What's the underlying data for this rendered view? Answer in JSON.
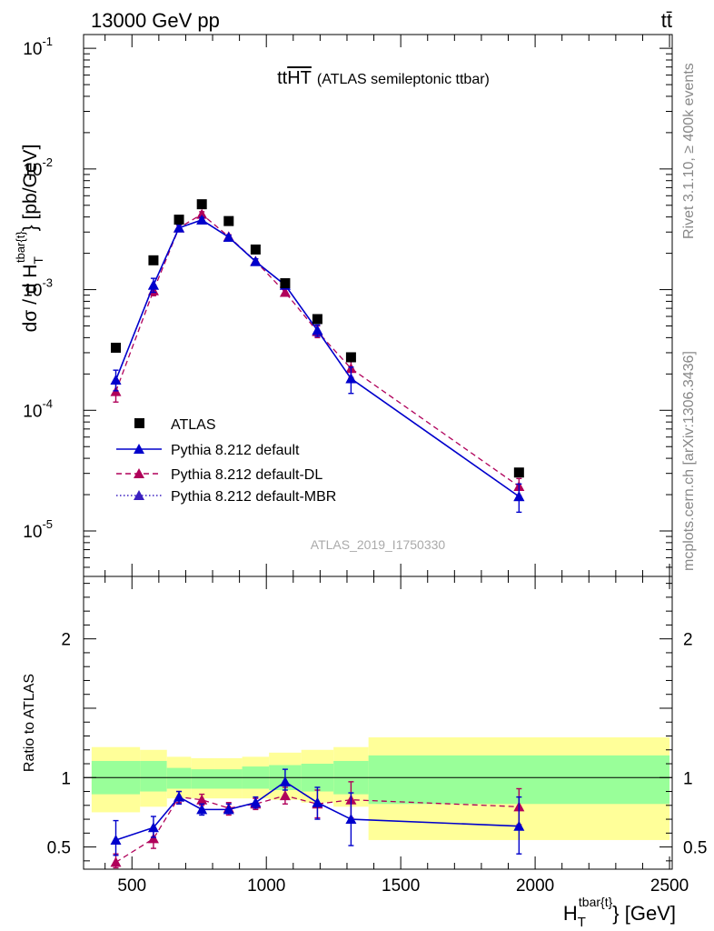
{
  "header": {
    "left": "13000 GeV pp",
    "right": "tt̄"
  },
  "side": {
    "rivet": "Rivet 3.1.10, ≥ 400k events",
    "mcplots": "mcplots.cern.ch [arXiv:1306.3436]"
  },
  "watermark": "ATLAS_2019_I1750330",
  "chart_data": [
    {
      "type": "line",
      "title": "ttHT (ATLAS semileptonic ttbar)",
      "title_main": "tt",
      "title_overline": "HT",
      "title_rest": "(ATLAS semileptonic ttbar)",
      "ylabel": "dσ / d H_T^{tbar{t}} [pb/GeV]",
      "ylabel_main": "dσ / d H",
      "ylabel_sup": "tbar{t}",
      "ylabel_sub": "T",
      "ylabel_end": "} [pb/GeV]",
      "yscale": "log",
      "xlim": [
        320,
        2510
      ],
      "ylim": [
        4.2e-06,
        0.13
      ],
      "yticks": [
        {
          "v": 1e-05,
          "base": "10",
          "exp": "-5"
        },
        {
          "v": 0.0001,
          "base": "10",
          "exp": "-4"
        },
        {
          "v": 0.001,
          "base": "10",
          "exp": "-3"
        },
        {
          "v": 0.01,
          "base": "10",
          "exp": "-2"
        },
        {
          "v": 0.1,
          "base": "10",
          "exp": "-1"
        }
      ],
      "legend_position": "bottom-left",
      "x": [
        440,
        580,
        675,
        760,
        860,
        960,
        1070,
        1190,
        1315,
        1940
      ],
      "series": [
        {
          "name": "ATLAS",
          "style": "data",
          "color": "#000000",
          "values": [
            0.00033,
            0.00175,
            0.0038,
            0.0051,
            0.0037,
            0.00215,
            0.00113,
            0.00057,
            0.000275,
            3.05e-05
          ]
        },
        {
          "name": "Pythia 8.212 default",
          "style": "solid",
          "color": "#0000cc",
          "values": [
            0.000178,
            0.00109,
            0.00325,
            0.00378,
            0.00272,
            0.00171,
            0.00109,
            0.00046,
            0.000183,
            1.93e-05
          ],
          "err_lo": [
            0.000145,
            0.00095,
            0.00305,
            0.0036,
            0.00262,
            0.00163,
            0.00102,
            0.00041,
            0.000138,
            1.43e-05
          ],
          "err_hi": [
            0.000215,
            0.00124,
            0.00345,
            0.00396,
            0.00282,
            0.0018,
            0.00117,
            0.00051,
            0.000228,
            2.45e-05
          ]
        },
        {
          "name": "Pythia 8.212 default-DL",
          "style": "dashed",
          "color": "#b0005a",
          "values": [
            0.000143,
            0.00098,
            0.00325,
            0.00422,
            0.00275,
            0.00172,
            0.00095,
            0.00045,
            0.000222,
            2.34e-05
          ],
          "err_lo": [
            0.000117,
            0.00089,
            0.00308,
            0.00403,
            0.00265,
            0.00164,
            0.00089,
            0.0004,
            0.000187,
            1.96e-05
          ],
          "err_hi": [
            0.00017,
            0.00107,
            0.00342,
            0.00442,
            0.00285,
            0.0018,
            0.00101,
            0.0005,
            0.000258,
            2.72e-05
          ]
        },
        {
          "name": "Pythia 8.212 default-MBR",
          "style": "dotted",
          "color": "#3a1fc0",
          "values": [
            0.000178,
            0.00109,
            0.00325,
            0.00378,
            0.00272,
            0.00171,
            0.00109,
            0.00046,
            0.000183,
            1.93e-05
          ]
        }
      ]
    },
    {
      "type": "line",
      "ylabel": "Ratio to ATLAS",
      "xlabel": "H_T^{tbar{t}} [GeV]",
      "xlabel_main": "H",
      "xlabel_sup": "tbar{t}",
      "xlabel_sub": "T",
      "xlabel_end": "} [GeV]",
      "xlim": [
        320,
        2510
      ],
      "ylim": [
        0.34,
        2.45
      ],
      "xticks": [
        500,
        1000,
        1500,
        2000,
        2500
      ],
      "yticks": [
        0.5,
        1,
        2
      ],
      "bins": [
        350,
        530,
        630,
        720,
        810,
        910,
        1010,
        1130,
        1250,
        1380,
        2500
      ],
      "band_green": [
        [
          0.88,
          1.12
        ],
        [
          0.9,
          1.12
        ],
        [
          0.92,
          1.07
        ],
        [
          0.92,
          1.06
        ],
        [
          0.92,
          1.06
        ],
        [
          0.92,
          1.08
        ],
        [
          0.91,
          1.09
        ],
        [
          0.9,
          1.1
        ],
        [
          0.88,
          1.12
        ],
        [
          0.81,
          1.16
        ]
      ],
      "band_yellow": [
        [
          0.75,
          1.22
        ],
        [
          0.79,
          1.2
        ],
        [
          0.85,
          1.15
        ],
        [
          0.85,
          1.14
        ],
        [
          0.85,
          1.14
        ],
        [
          0.85,
          1.15
        ],
        [
          0.84,
          1.18
        ],
        [
          0.82,
          1.2
        ],
        [
          0.79,
          1.22
        ],
        [
          0.55,
          1.29
        ]
      ],
      "x": [
        440,
        580,
        675,
        760,
        860,
        960,
        1070,
        1190,
        1315,
        1940
      ],
      "series": [
        {
          "name": "Pythia 8.212 default",
          "style": "solid",
          "color": "#0000cc",
          "values": [
            0.55,
            0.64,
            0.86,
            0.77,
            0.77,
            0.82,
            0.97,
            0.82,
            0.7,
            0.65
          ],
          "err_lo": [
            0.44,
            0.57,
            0.81,
            0.73,
            0.74,
            0.78,
            0.91,
            0.7,
            0.51,
            0.45
          ],
          "err_hi": [
            0.69,
            0.72,
            0.9,
            0.81,
            0.81,
            0.86,
            1.06,
            0.93,
            0.89,
            0.86
          ]
        },
        {
          "name": "Pythia 8.212 default-DL",
          "style": "dashed",
          "color": "#b0005a",
          "values": [
            0.39,
            0.56,
            0.86,
            0.84,
            0.78,
            0.81,
            0.87,
            0.81,
            0.84,
            0.79
          ],
          "err_lo": [
            0.35,
            0.49,
            0.82,
            0.8,
            0.73,
            0.77,
            0.81,
            0.71,
            0.71,
            0.66
          ],
          "err_hi": [
            0.45,
            0.62,
            0.9,
            0.88,
            0.82,
            0.85,
            0.93,
            0.91,
            0.97,
            0.92
          ]
        },
        {
          "name": "Pythia 8.212 default-MBR",
          "style": "dotted",
          "color": "#3a1fc0",
          "values": [
            0.55,
            0.64,
            0.86,
            0.77,
            0.77,
            0.82,
            0.97,
            0.82,
            0.7,
            0.65
          ]
        }
      ]
    }
  ]
}
